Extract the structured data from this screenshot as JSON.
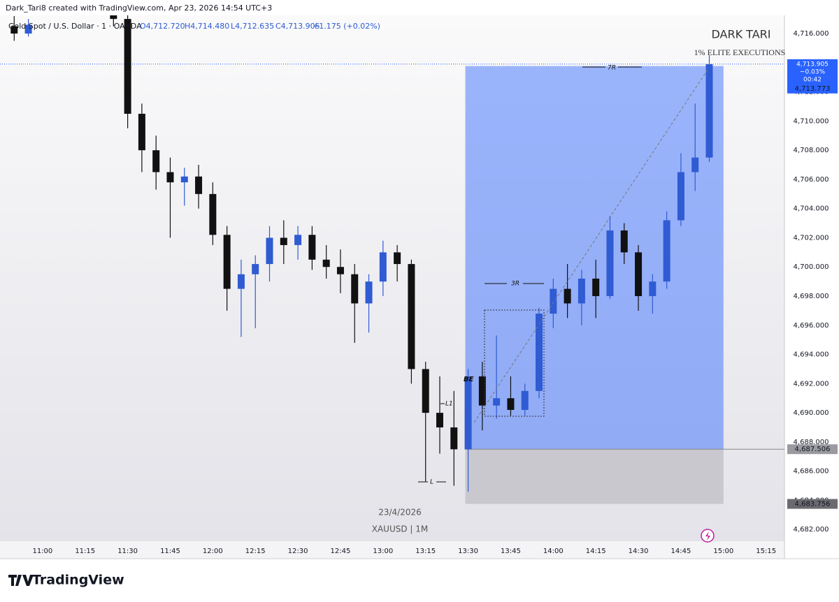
{
  "header": "Dark_Tari8 created with TradingView.com, Apr 23, 2026 14:54 UTC+3",
  "legend": {
    "symbol": "Gold Spot / U.S. Dollar · 1 · OANDA",
    "open": "O4,712.720",
    "high": "H4,714.480",
    "low": "L4,712.635",
    "close": "C4,713.905",
    "change": "+1.175 (+0.02%)"
  },
  "chart_data": {
    "type": "candlestick",
    "x": [
      "10:50",
      "10:55",
      "11:25",
      "11:30",
      "11:35",
      "11:40",
      "11:45",
      "11:50",
      "11:55",
      "12:00",
      "12:05",
      "12:10",
      "12:15",
      "12:20",
      "12:25",
      "12:30",
      "12:35",
      "12:40",
      "12:45",
      "12:50",
      "12:55",
      "13:00",
      "13:05",
      "13:10",
      "13:15",
      "13:20",
      "13:25",
      "13:30",
      "13:35",
      "13:40",
      "13:45",
      "13:50",
      "13:55",
      "14:00",
      "14:05",
      "14:10",
      "14:15",
      "14:20",
      "14:25",
      "14:30",
      "14:35",
      "14:40",
      "14:45",
      "14:50",
      "14:55"
    ],
    "open": [
      4716.5,
      4716.0,
      4718.5,
      4717.0,
      4710.5,
      4708.0,
      4706.5,
      4705.8,
      4706.2,
      4705.0,
      4702.2,
      4698.5,
      4699.5,
      4700.2,
      4702.0,
      4701.5,
      4702.2,
      4700.5,
      4700.0,
      4699.5,
      4697.5,
      4699.0,
      4701.0,
      4700.2,
      4693.0,
      4690.0,
      4689.0,
      4687.5,
      4692.5,
      4690.5,
      4691.0,
      4690.2,
      4691.5,
      4696.8,
      4698.5,
      4697.5,
      4699.2,
      4698.0,
      4702.5,
      4701.0,
      4698.0,
      4699.0,
      4703.2,
      4706.5,
      4707.5
    ],
    "high": [
      4717.2,
      4717.0,
      4719.0,
      4717.5,
      4711.2,
      4709.0,
      4707.5,
      4706.8,
      4707.0,
      4705.8,
      4702.8,
      4700.5,
      4700.8,
      4702.8,
      4703.2,
      4702.8,
      4702.8,
      4701.5,
      4701.2,
      4700.2,
      4699.5,
      4701.8,
      4701.5,
      4700.5,
      4693.5,
      4692.5,
      4691.5,
      4693.0,
      4693.5,
      4695.3,
      4692.5,
      4692.0,
      4697.2,
      4699.2,
      4700.2,
      4699.8,
      4700.5,
      4703.5,
      4703.0,
      4701.5,
      4699.5,
      4703.8,
      4707.8,
      4711.2,
      4714.5
    ],
    "low": [
      4715.5,
      4715.8,
      4716.5,
      4709.5,
      4706.5,
      4705.3,
      4702.0,
      4704.2,
      4704.0,
      4701.5,
      4697.0,
      4695.2,
      4695.8,
      4699.0,
      4700.2,
      4700.5,
      4699.8,
      4699.2,
      4698.2,
      4694.8,
      4695.5,
      4698.0,
      4699.0,
      4692.0,
      4685.3,
      4687.2,
      4685.0,
      4684.6,
      4688.8,
      4689.6,
      4689.8,
      4689.8,
      4691.0,
      4695.8,
      4696.5,
      4696.0,
      4696.5,
      4697.8,
      4700.2,
      4697.0,
      4696.8,
      4698.5,
      4702.8,
      4705.2,
      4707.2
    ],
    "close": [
      4716.0,
      4716.6,
      4717.0,
      4710.5,
      4708.0,
      4706.5,
      4705.8,
      4706.2,
      4705.0,
      4702.2,
      4698.5,
      4699.5,
      4700.2,
      4702.0,
      4701.5,
      4702.2,
      4700.5,
      4700.0,
      4699.5,
      4697.5,
      4699.0,
      4701.0,
      4700.2,
      4693.0,
      4690.0,
      4689.0,
      4687.5,
      4692.5,
      4690.5,
      4691.0,
      4690.2,
      4691.5,
      4696.8,
      4698.5,
      4697.5,
      4699.2,
      4698.0,
      4702.5,
      4701.0,
      4698.0,
      4699.0,
      4703.2,
      4706.5,
      4707.5,
      4713.9
    ],
    "up_color": "#2f5bd3",
    "down_color": "#111111",
    "xlim": [
      "10:45",
      "15:21"
    ],
    "xticks": [
      "11:00",
      "11:15",
      "11:30",
      "11:45",
      "12:00",
      "12:15",
      "12:30",
      "12:45",
      "13:00",
      "13:15",
      "13:30",
      "13:45",
      "14:00",
      "14:15",
      "14:30",
      "14:45",
      "15:00",
      "15:15"
    ],
    "ylim": [
      4680,
      4718.3
    ],
    "yticks": [
      {
        "value": 4682,
        "label": "4,682.000"
      },
      {
        "value": 4684,
        "label": "4,684.000"
      },
      {
        "value": 4686,
        "label": "4,686.000"
      },
      {
        "value": 4688,
        "label": "4,688.000"
      },
      {
        "value": 4690,
        "label": "4,690.000"
      },
      {
        "value": 4692,
        "label": "4,692.000"
      },
      {
        "value": 4694,
        "label": "4,694.000"
      },
      {
        "value": 4696,
        "label": "4,696.000"
      },
      {
        "value": 4698,
        "label": "4,698.000"
      },
      {
        "value": 4700,
        "label": "4,700.000"
      },
      {
        "value": 4702,
        "label": "4,702.000"
      },
      {
        "value": 4704,
        "label": "4,704.000"
      },
      {
        "value": 4706,
        "label": "4,706.000"
      },
      {
        "value": 4708,
        "label": "4,708.000"
      },
      {
        "value": 4710,
        "label": "4,710.000"
      },
      {
        "value": 4712,
        "label": "4,712.000"
      },
      {
        "value": 4714,
        "label": "4,714.000"
      },
      {
        "value": 4716,
        "label": "4,716.000"
      }
    ],
    "last": {
      "value": 4713.905,
      "label": "4,713.905"
    },
    "change_pct": "−0.03%",
    "countdown": "00:42",
    "position": {
      "start": "13:29",
      "end": "15:00",
      "entry": {
        "value": 4687.506,
        "label": "4,687.506"
      },
      "stop": {
        "value": 4683.756,
        "label": "4,683.756"
      },
      "target": {
        "value": 4713.773,
        "label": "4,713.773"
      },
      "profit_color": "#2962ff",
      "stop_color": "#b4b4ba"
    }
  },
  "annotations": {
    "r3": "3R",
    "r7": "7R",
    "be": "BE",
    "l1": "L1",
    "l": "L",
    "date": "23/4/2026",
    "symbol": "XAUUSD | 1M",
    "brand_title": "DARK TARI",
    "brand_sub": "1% ELITE EXECUTIONS"
  },
  "footer": "TradingView"
}
